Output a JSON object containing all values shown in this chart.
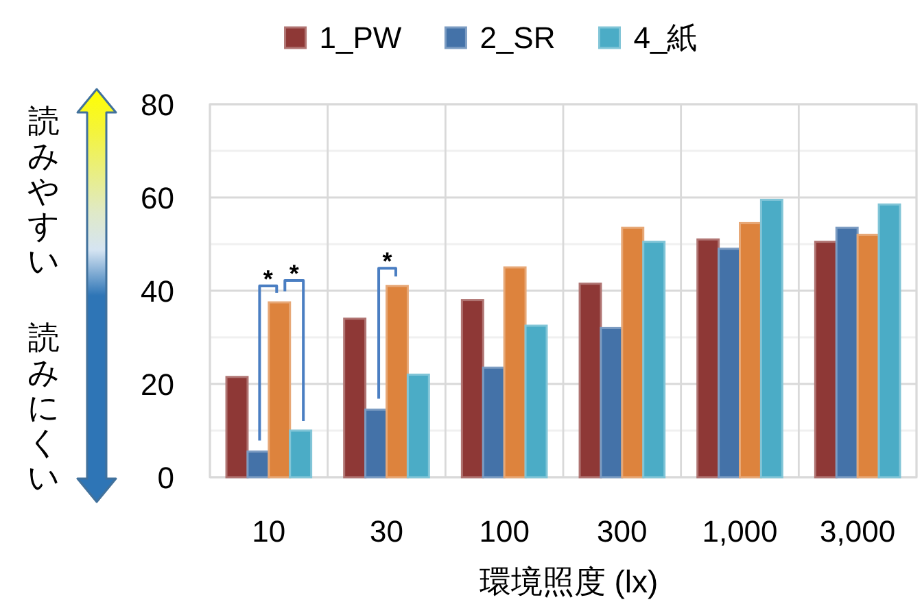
{
  "chart_data": {
    "type": "bar",
    "categories": [
      "10",
      "30",
      "100",
      "300",
      "1,000",
      "3,000"
    ],
    "series": [
      {
        "name": "1_PW",
        "color": "#8e3836",
        "values": [
          21.5,
          34,
          38,
          41.5,
          51,
          50.5
        ]
      },
      {
        "name": "2_SR",
        "color": "#4472a8",
        "values": [
          5.5,
          14.5,
          23.5,
          32,
          49,
          53.5
        ]
      },
      {
        "color": "#dd833d",
        "values": [
          37.5,
          41,
          45,
          53.5,
          54.5,
          52
        ]
      },
      {
        "name": "4_紙",
        "color": "#4bacc6",
        "values": [
          10,
          22,
          32.5,
          50.5,
          59.5,
          58.5
        ]
      }
    ],
    "xlabel": "環境照度 (lx)",
    "ylim": [
      0,
      80
    ],
    "yticks": [
      0,
      {
        "value": 10,
        "label": null
      },
      20,
      {
        "value": 30,
        "label": null
      },
      40,
      {
        "value": 50,
        "label": null
      },
      60,
      {
        "value": 70,
        "label": null
      },
      80
    ],
    "grid": true,
    "legend": "top",
    "annotations": [
      "読みやすい",
      "読みにくい",
      "*",
      "*",
      "*"
    ]
  }
}
